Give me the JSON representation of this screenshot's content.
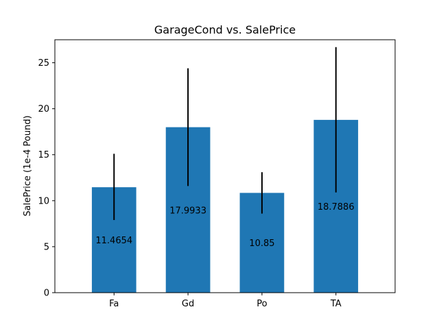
{
  "chart_data": {
    "type": "bar",
    "title": "GarageCond vs. SalePrice",
    "xlabel": "",
    "ylabel": "SalePrice (1e-4 Pound)",
    "categories": [
      "Fa",
      "Gd",
      "Po",
      "TA"
    ],
    "values": [
      11.4654,
      17.9933,
      10.85,
      18.7886
    ],
    "data_labels": [
      "11.4654",
      "17.9933",
      "10.85",
      "18.7886"
    ],
    "error_bars": [
      {
        "low": 7.9,
        "high": 15.1
      },
      {
        "low": 11.6,
        "high": 24.4
      },
      {
        "low": 8.6,
        "high": 13.1
      },
      {
        "low": 10.9,
        "high": 26.7
      }
    ],
    "ylim": [
      0,
      27.5
    ],
    "yticks": [
      0,
      5,
      10,
      15,
      20,
      25
    ],
    "bar_color": "#1f77b4",
    "error_color": "#000000",
    "grid": false,
    "legend": "none"
  }
}
